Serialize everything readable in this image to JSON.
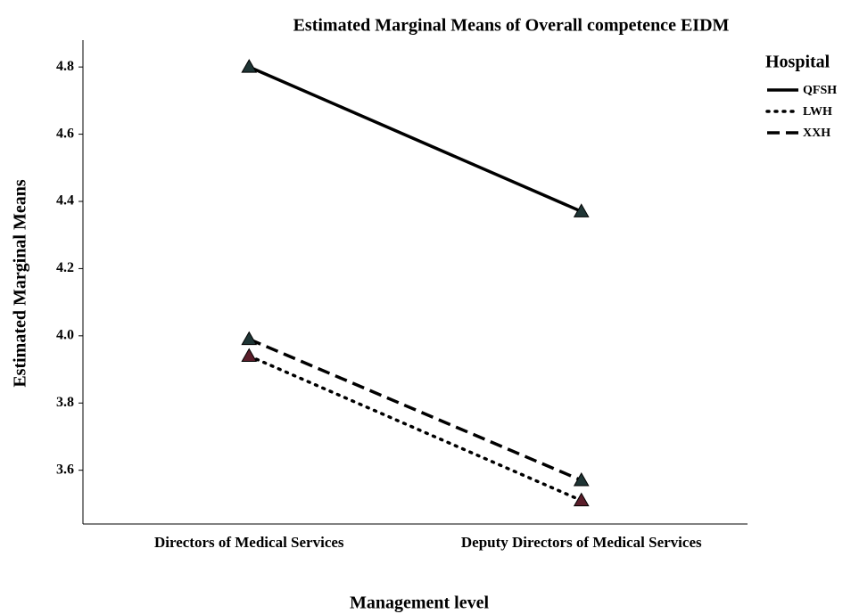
{
  "chart_data": {
    "type": "line",
    "title": "Estimated Marginal Means of Overall competence EIDM",
    "x_label": "Management level",
    "y_label": "Estimated Marginal Means",
    "categories": [
      "Directors of Medical Services",
      "Deputy Directors of Medical Services"
    ],
    "legend_title": "Hospital",
    "legend_position": "right",
    "ylim": [
      3.44,
      4.88
    ],
    "yticks": [
      3.6,
      3.8,
      {
        "value": 4,
        "label": "4.0"
      },
      4.2,
      4.4,
      4.6,
      4.8
    ],
    "grid": false,
    "series": [
      {
        "name": "QFSH",
        "color": "#000000",
        "dash": "solid",
        "marker_color": "#1f3535",
        "values": [
          4.8,
          4.37
        ]
      },
      {
        "name": "LWH",
        "color": "#000000",
        "dash": "dotted",
        "marker_color": "#5a1e2a",
        "values": [
          3.94,
          3.51
        ]
      },
      {
        "name": "XXH",
        "color": "#000000",
        "dash": "dashed",
        "marker_color": "#1f3535",
        "values": [
          3.99,
          3.57
        ]
      }
    ]
  }
}
